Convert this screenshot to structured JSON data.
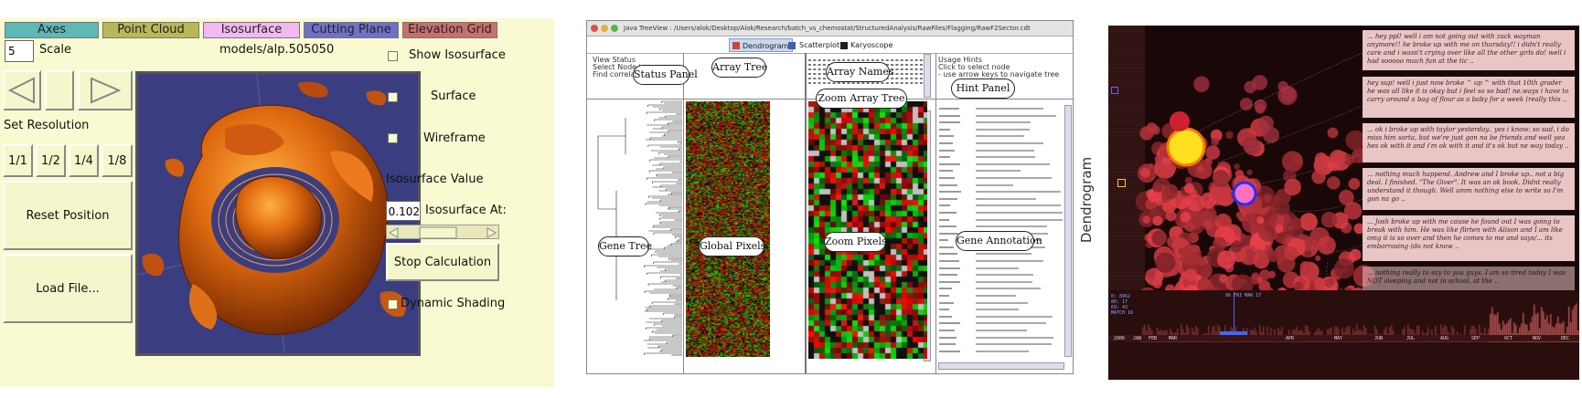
{
  "panel1": {
    "tabs": [
      {
        "label": "Axes",
        "color": "#5fb8b8"
      },
      {
        "label": "Point Cloud",
        "color": "#b8b85a"
      },
      {
        "label": "Isosurface",
        "color": "#f2b8f2"
      },
      {
        "label": "Cutting Plane",
        "color": "#7070c8"
      },
      {
        "label": "Elevation Grid",
        "color": "#c87070"
      }
    ],
    "scale_value": "5",
    "scale_label": "Scale",
    "model_name": "models/alp.505050",
    "set_resolution_label": "Set Resolution",
    "resolutions": [
      "1/1",
      "1/2",
      "1/4",
      "1/8"
    ],
    "reset_position": "Reset Position",
    "load_file": "Load File...",
    "show_isosurface": "Show Isosurface",
    "surface": "Surface",
    "wireframe": "Wireframe",
    "isosurface_value_label": "Isosurface Value",
    "isosurface_value": "0.102",
    "isosurface_at": "Isosurface At:",
    "stop_calculation": "Stop Calculation",
    "dynamic_shading": "Dynamic Shading"
  },
  "panel2": {
    "title": "Java TreeView : /Users/alok/Desktop/Alok/Research/batch_vs_chemostat/StructuredAnalysis/RawFiles/Flagging/RawF2Sector.cdt",
    "tabs": [
      "Dendrogram",
      "Scatterplot",
      "Karyoscope"
    ],
    "view_status": "View Status",
    "select_node": "Select Node to",
    "find_correlation": "Find correlation",
    "usage_hints": "Usage Hints",
    "hint1": "Click to select node",
    "hint2": "- use arrow keys to navigate tree",
    "callouts": {
      "status_panel": "Status Panel",
      "array_tree": "Array Tree",
      "array_names": "Array Names",
      "zoom_array_tree": "Zoom Array Tree",
      "hint_panel": "Hint Panel",
      "gene_tree": "Gene Tree",
      "global_pixels": "Global Pixels",
      "zoom_pixels": "Zoom Pixels",
      "gene_annotation": "Gene Annotation"
    },
    "side_label": "Dendrogram"
  },
  "panel3": {
    "notes": [
      "... hey ppl! well i am not going out with zack wayman anymore!! he broke up with me on thursday!! i didn't really care and i wasn't crying over like all the other girls do! well i had sooooo much fun at the tic ..",
      "hey sup! well i just now broke ^ up ^ with that 10th grader he was all like it is okay but i feel so so bad! ne.ways i have to carry around a bag of flour as a baby for a week (really this ..",
      "... ok i broke up with taylor yesterday.. yes i know: so sad, i do miss him sorta, but we're just gon na be friends and well yea hes ok with it and i'm ok with it and it's ok but ne way today ..",
      "... nothing much happend. Andrew and I broke up.. not a big deal. I finished. \"The Giver\". It was an ok book. Didnt really understand it though. Well umm nothing else to write so I'm gon na go ..",
      "... Josh broke up with me cause he found out I was going to break with him. He was like flirten with Alison and I am like omg it is so over and then he comes to me and says/... its embarrasing (do not know ..",
      "... nothing really to say to you guys. I am so tired today I was NOT sleeping and not in school, at the .."
    ],
    "stats": [
      "0: 8962",
      "80: 17",
      "69: 43",
      "MATCH 16"
    ],
    "cursor_date": "06 FRI MAR 17",
    "months": [
      "JAN",
      "FEB",
      "MAR",
      "APR",
      "MAY",
      "JUN",
      "JUL",
      "AUG",
      "SEP",
      "OCT",
      "NOV",
      "DEC"
    ],
    "year": "2006"
  }
}
